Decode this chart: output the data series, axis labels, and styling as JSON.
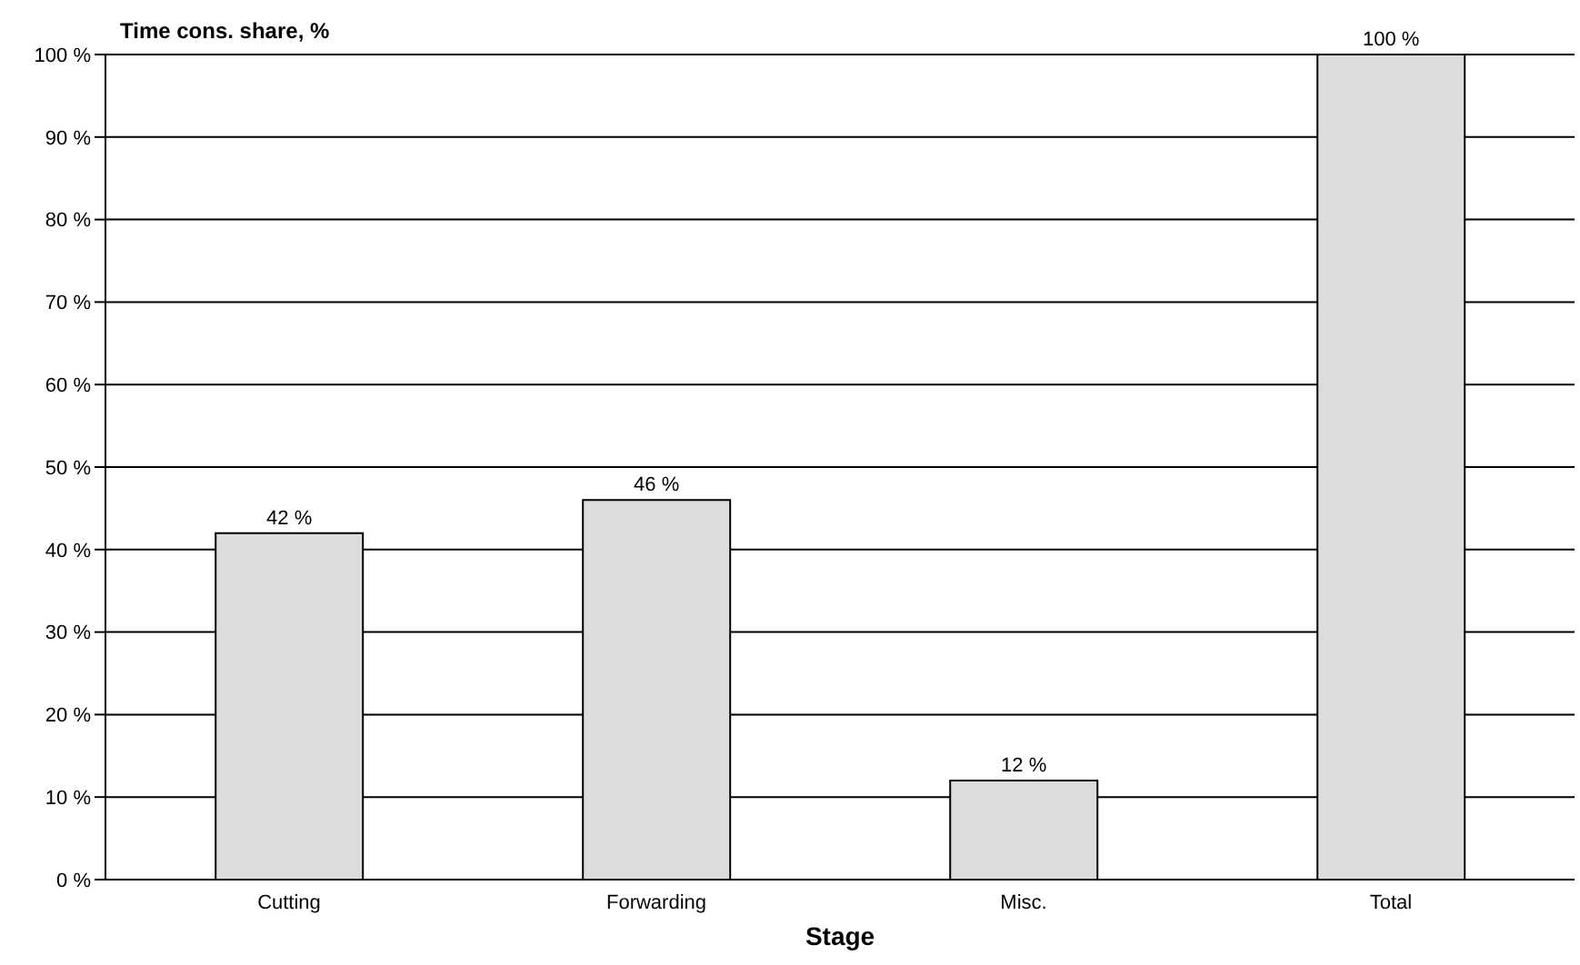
{
  "chart_data": {
    "type": "bar",
    "ylabel": "Time cons. share, %",
    "xlabel": "Stage",
    "categories": [
      "Cutting",
      "Forwarding",
      "Misc.",
      "Total"
    ],
    "values": [
      42,
      46,
      12,
      100
    ],
    "value_labels": [
      "42 %",
      "46 %",
      "12 %",
      "100 %"
    ],
    "color": "#dcdcdc",
    "ylim": [
      0,
      100
    ],
    "yticks": [
      {
        "value": 0,
        "label": "0 %"
      },
      {
        "value": 10,
        "label": "10 %"
      },
      {
        "value": 20,
        "label": "20 %"
      },
      {
        "value": 30,
        "label": "30 %"
      },
      {
        "value": 40,
        "label": "40 %"
      },
      {
        "value": 50,
        "label": "50 %"
      },
      {
        "value": 60,
        "label": "60 %"
      },
      {
        "value": 70,
        "label": "70 %"
      },
      {
        "value": 80,
        "label": "80 %"
      },
      {
        "value": 90,
        "label": "90 %"
      },
      {
        "value": 100,
        "label": "100 %"
      }
    ],
    "grid": "y"
  }
}
